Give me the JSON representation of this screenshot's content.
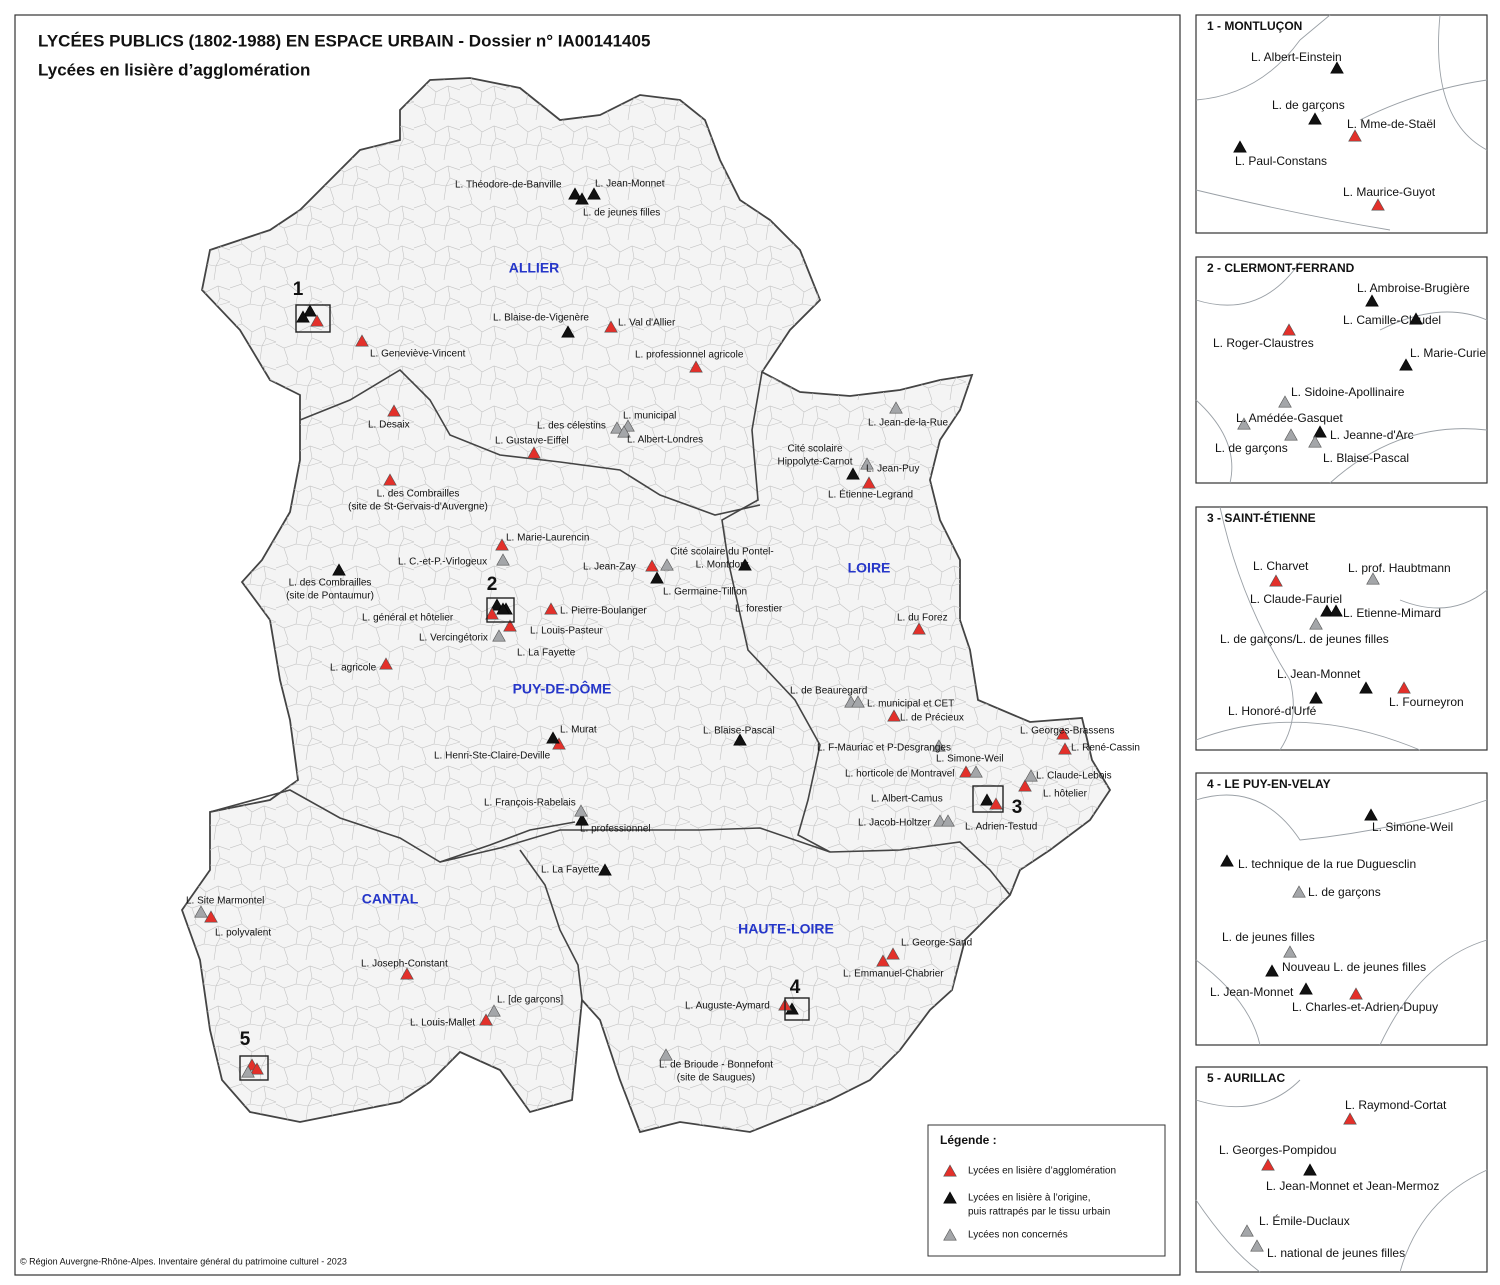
{
  "header": {
    "title": "LYCÉES PUBLICS (1802-1988) EN ESPACE URBAIN - Dossier n° IA00141405",
    "subtitle": "Lycées en lisière d’agglomération"
  },
  "departments": [
    "ALLIER",
    "PUY-DE-DÔME",
    "LOIRE",
    "CANTAL",
    "HAUTE-LOIRE"
  ],
  "zooms": [
    "1",
    "2",
    "3",
    "4",
    "5"
  ],
  "lycees": [
    [
      [
        "L. Geneviève-Vincent"
      ],
      [
        "L. Val d'Allier"
      ],
      [
        "L. professionnel agricole"
      ],
      [
        "L. Desaix"
      ],
      [
        "L. Gustave-Eiffel"
      ],
      [
        "L. des Combrailles",
        "(site de St-Gervais-d'Auvergne)"
      ],
      [
        "L. Marie-Laurencin"
      ],
      [
        "L. Jean-Zay"
      ],
      [
        "L. Pierre-Boulanger"
      ],
      [
        "L. général et hôtelier"
      ],
      [
        "L. Louis-Pasteur"
      ],
      [
        "L. agricole"
      ],
      [
        "L. Henri-Ste-Claire-Deville"
      ],
      [
        "L. Étienne-Legrand"
      ],
      [
        "L. du Forez"
      ],
      [
        "L. de Précieux"
      ],
      [
        "L. Georges-Brassens"
      ],
      [
        "L. René-Cassin"
      ],
      [
        "L. horticole de Montravel"
      ],
      [
        "L. hôtelier"
      ],
      [
        "L. Adrien-Testud"
      ],
      [
        "L. polyvalent"
      ],
      [
        "L. Joseph-Constant"
      ],
      [
        "L. Louis-Mallet"
      ],
      [
        "L. George-Sand"
      ],
      [
        "L. Emmanuel-Chabrier"
      ],
      [
        "L. Auguste-Aymard"
      ]
    ],
    [
      [
        "L. Théodore-de-Banville"
      ],
      [
        "L. Jean-Monnet"
      ],
      [
        "L. de jeunes filles"
      ],
      [
        "L. Blaise-de-Vigenère"
      ],
      [
        "Cité scolaire",
        "Hippolyte-Carnot"
      ],
      [
        "L. des Combrailles",
        "(site de Pontaumur)"
      ],
      [
        "L. Germaine-Tillion"
      ],
      [
        "L. forestier"
      ],
      [
        "L. Murat"
      ],
      [
        "L. Blaise-Pascal"
      ],
      [
        "L. professionnel"
      ],
      [
        "L. La Fayette"
      ],
      [
        "L. La Fayette"
      ]
    ],
    [
      [
        "L. Jean-de-la-Rue"
      ],
      [
        "L. Jean-Puy"
      ],
      [
        "L. des célestins"
      ],
      [
        "L. municipal"
      ],
      [
        "L. Albert-Londres"
      ],
      [
        "L. C.-et-P.-Virlogeux"
      ],
      [
        "Cité scolaire du Pontel-",
        "L. Montdory"
      ],
      [
        "L. Vercingétorix"
      ],
      [
        "L. François-Rabelais"
      ],
      [
        "L. de Beauregard"
      ],
      [
        "L. municipal et CET"
      ],
      [
        "L. F-Mauriac et P-Desgranges"
      ],
      [
        "L. Simone-Weil"
      ],
      [
        "L. Claude-Lebois"
      ],
      [
        "L. Albert-Camus"
      ],
      [
        "L. Jacob-Holtzer"
      ],
      [
        "L. Site Marmontel"
      ],
      [
        "L. [de garçons]"
      ],
      [
        "L. de Brioude - Bonnefont",
        "(site de Saugues)"
      ]
    ]
  ],
  "insets": [
    {
      "title": "1 - MONTLUÇON",
      "lycees": [
        [
          "L. Mme-de-Staël",
          "L. Maurice-Guyot"
        ],
        [
          "L. Albert-Einstein",
          "L. de garçons",
          "L. Paul-Constans"
        ],
        []
      ]
    },
    {
      "title": "2 - CLERMONT-FERRAND",
      "lycees": [
        [
          "L. Roger-Claustres"
        ],
        [
          "L. Ambroise-Brugière",
          "L. Camille-Claudel",
          "L. Marie-Curie",
          "L. Jeanne-d'Arc"
        ],
        [
          "L. Sidoine-Apollinaire",
          "L. Amédée-Gasquet",
          "L. de garçons",
          "L. Blaise-Pascal"
        ]
      ]
    },
    {
      "title": "3 - SAINT-ÉTIENNE",
      "lycees": [
        [
          "L. Charvet",
          "L. Fourneyron"
        ],
        [
          "L. Claude-Fauriel",
          "L. Etienne-Mimard",
          "L. Jean-Monnet",
          "L. Honoré-d'Urfé"
        ],
        [
          "L. prof. Haubtmann",
          "L. de garçons/L. de jeunes filles"
        ]
      ]
    },
    {
      "title": "4 - LE PUY-EN-VELAY",
      "lycees": [
        [
          "L. Charles-et-Adrien-Dupuy"
        ],
        [
          "L. Simone-Weil",
          "L. technique de la rue Duguesclin",
          "Nouveau L. de jeunes filles",
          "L. Jean-Monnet"
        ],
        [
          "L. de garçons",
          "L. de jeunes filles"
        ]
      ]
    },
    {
      "title": "5 - AURILLAC",
      "lycees": [
        [
          "L. Raymond-Cortat",
          "L. Georges-Pompidou"
        ],
        [
          "L. Jean-Monnet et Jean-Mermoz"
        ],
        [
          "L. Émile-Duclaux",
          "L. national de jeunes filles"
        ]
      ]
    }
  ],
  "legend": {
    "title": "Légende :",
    "items": [
      {
        "label": [
          "Lycées en lisière d’agglomération"
        ],
        "color": "#e3302a"
      },
      {
        "label": [
          "Lycées en lisière à l’origine,",
          "puis rattrapés par le tissu urbain"
        ],
        "color": "#111111"
      },
      {
        "label": [
          "Lycées non concernés"
        ],
        "color": "#a4a6a9"
      }
    ]
  },
  "footer": "© Région Auvergne-Rhône-Alpes. Inventaire général du patrimoine culturel - 2023"
}
